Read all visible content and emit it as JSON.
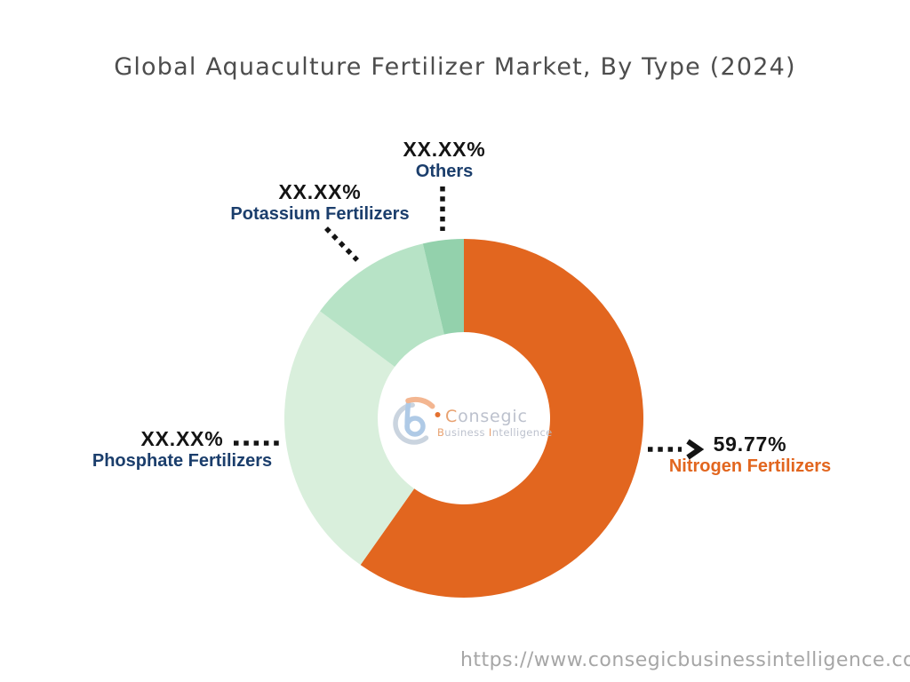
{
  "title": "Global Aquaculture Fertilizer Market, By Type (2024)",
  "footer": {
    "url": "https://www.consegicbusinessintelligence.co"
  },
  "watermark": {
    "brand_c": "C",
    "brand_rest": "onsegic",
    "tagline_b": "B",
    "tagline_business_rest": "usiness",
    "tagline_i": "I",
    "tagline_intelligence_rest": "ntelligence"
  },
  "labels": {
    "others": {
      "pct": "XX.XX%",
      "name": "Others"
    },
    "potassium": {
      "pct": "XX.XX%",
      "name": "Potassium Fertilizers"
    },
    "phosphate": {
      "pct": "XX.XX%",
      "name": "Phosphate Fertilizers"
    },
    "nitrogen": {
      "pct": "59.77%",
      "name": "Nitrogen Fertilizers"
    }
  },
  "colors": {
    "nitrogen": "#E2661F",
    "phosphate": "#D9EFDC",
    "potassium": "#B7E3C6",
    "others": "#93D1AC",
    "category_label": "#1b3e6c",
    "value_label": "#141414",
    "title_text": "#4d4d4d",
    "url_text": "#a6a6a6"
  },
  "chart_data": {
    "type": "pie",
    "subtype": "donut",
    "title": "Global Aquaculture Fertilizer Market, By Type (2024)",
    "start_angle_deg": 0,
    "direction": "clockwise",
    "legend_position": "callouts",
    "segments": [
      {
        "label": "Nitrogen Fertilizers",
        "display_value": "59.77%",
        "value_pct": 59.77,
        "color": "#E2661F"
      },
      {
        "label": "Phosphate Fertilizers",
        "display_value": "XX.XX%",
        "value_pct": 25.42,
        "color": "#D9EFDC"
      },
      {
        "label": "Potassium Fertilizers",
        "display_value": "XX.XX%",
        "value_pct": 11.14,
        "color": "#B7E3C6"
      },
      {
        "label": "Others",
        "display_value": "XX.XX%",
        "value_pct": 3.67,
        "color": "#93D1AC"
      }
    ]
  }
}
